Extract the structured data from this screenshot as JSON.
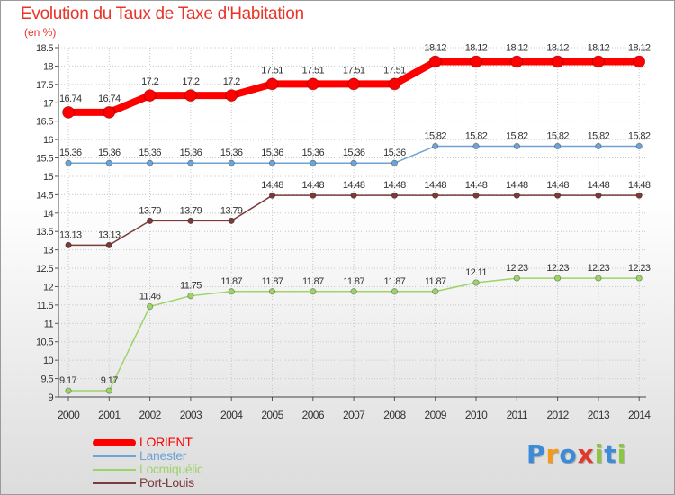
{
  "title": "Evolution du Taux de Taxe d'Habitation",
  "unit": "(en %)",
  "logo": {
    "text": "Proxiti",
    "letter_colors": [
      "#3c8bd8",
      "#f39a1d",
      "#3c8bd8",
      "#e2372a",
      "#8cc63f",
      "#3c8bd8",
      "#8cc63f"
    ]
  },
  "chart_data": {
    "type": "line",
    "title": "Evolution du Taux de Taxe d'Habitation",
    "ylabel": "(en %)",
    "xlabel": "",
    "ylim": [
      9,
      18.5
    ],
    "yticks": [
      "9",
      "9.5",
      "10",
      "10.5",
      "11",
      "11.5",
      "12",
      "12.5",
      "13",
      "13.5",
      "14",
      "14.5",
      "15",
      "15.5",
      "16",
      "16.5",
      "17",
      "17.5",
      "18",
      "18.5"
    ],
    "x": [
      "2000",
      "2001",
      "2002",
      "2003",
      "2004",
      "2005",
      "2006",
      "2007",
      "2008",
      "2009",
      "2010",
      "2011",
      "2012",
      "2013",
      "2014"
    ],
    "grid": true,
    "series": [
      {
        "name": "LORIENT",
        "color": "#ff0000",
        "values": [
          16.74,
          16.74,
          17.2,
          17.2,
          17.2,
          17.51,
          17.51,
          17.51,
          17.51,
          18.12,
          18.12,
          18.12,
          18.12,
          18.12,
          18.12
        ],
        "labels": [
          "16.74",
          "16.74",
          "17.2",
          "17.2",
          "17.2",
          "17.51",
          "17.51",
          "17.51",
          "17.51",
          "18.12",
          "18.12",
          "18.12",
          "18.12",
          "18.12",
          "18.12"
        ]
      },
      {
        "name": "Lanester",
        "color": "#6fa3d4",
        "values": [
          15.36,
          15.36,
          15.36,
          15.36,
          15.36,
          15.36,
          15.36,
          15.36,
          15.36,
          15.82,
          15.82,
          15.82,
          15.82,
          15.82,
          15.82
        ],
        "labels": [
          "15.36",
          "15.36",
          "15.36",
          "15.36",
          "15.36",
          "15.36",
          "15.36",
          "15.36",
          "15.36",
          "15.82",
          "15.82",
          "15.82",
          "15.82",
          "15.82",
          "15.82"
        ]
      },
      {
        "name": "Locmiquélic",
        "color": "#9ed36a",
        "values": [
          9.17,
          9.17,
          11.46,
          11.75,
          11.87,
          11.87,
          11.87,
          11.87,
          11.87,
          11.87,
          12.11,
          12.23,
          12.23,
          12.23,
          12.23
        ],
        "labels": [
          "9.17",
          "9.17",
          "11.46",
          "11.75",
          "11.87",
          "11.87",
          "11.87",
          "11.87",
          "11.87",
          "11.87",
          "12.11",
          "12.23",
          "12.23",
          "12.23",
          "12.23"
        ]
      },
      {
        "name": "Port-Louis",
        "color": "#7a3b3b",
        "values": [
          13.13,
          13.13,
          13.79,
          13.79,
          13.79,
          14.48,
          14.48,
          14.48,
          14.48,
          14.48,
          14.48,
          14.48,
          14.48,
          14.48,
          14.48
        ],
        "labels": [
          "13.13",
          "13.13",
          "13.79",
          "13.79",
          "13.79",
          "14.48",
          "14.48",
          "14.48",
          "14.48",
          "14.48",
          "14.48",
          "14.48",
          "14.48",
          "14.48",
          "14.48"
        ]
      }
    ]
  }
}
